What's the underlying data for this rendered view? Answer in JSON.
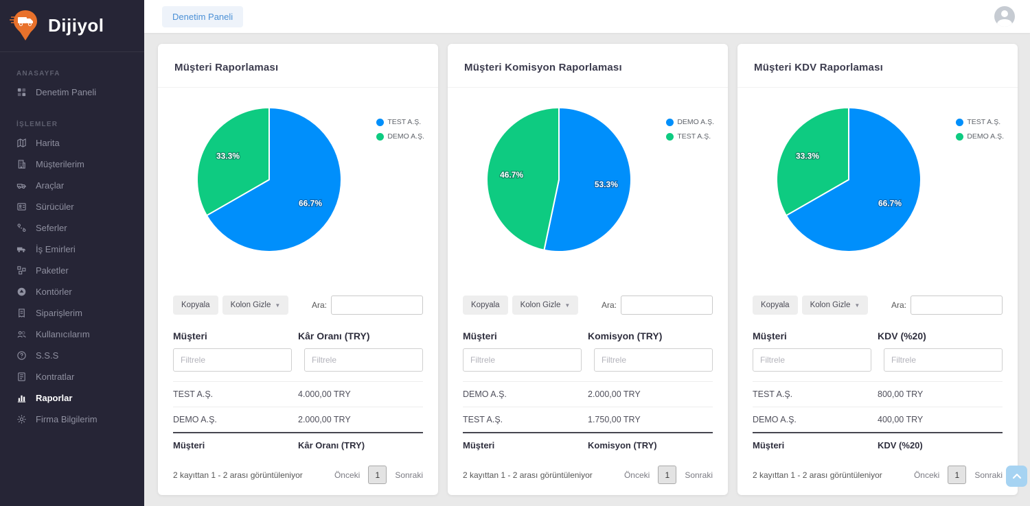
{
  "brand": {
    "name": "Dijiyol"
  },
  "topbar": {
    "tab": "Denetim Paneli"
  },
  "sidebar": {
    "sections": [
      {
        "label": "ANASAYFA",
        "items": [
          {
            "icon": "dashboard-icon",
            "label": "Denetim Paneli"
          }
        ]
      },
      {
        "label": "İŞLEMLER",
        "items": [
          {
            "icon": "map-icon",
            "label": "Harita"
          },
          {
            "icon": "building-icon",
            "label": "Müşterilerim"
          },
          {
            "icon": "vehicle-icon",
            "label": "Araçlar"
          },
          {
            "icon": "id-card-icon",
            "label": "Sürücüler"
          },
          {
            "icon": "route-icon",
            "label": "Seferler"
          },
          {
            "icon": "truck-icon",
            "label": "İş Emirleri"
          },
          {
            "icon": "packages-icon",
            "label": "Paketler"
          },
          {
            "icon": "credits-icon",
            "label": "Kontörler"
          },
          {
            "icon": "orders-icon",
            "label": "Siparişlerim"
          },
          {
            "icon": "users-icon",
            "label": "Kullanıcılarım"
          },
          {
            "icon": "question-icon",
            "label": "S.S.S"
          },
          {
            "icon": "contract-icon",
            "label": "Kontratlar"
          },
          {
            "icon": "reports-icon",
            "label": "Raporlar"
          },
          {
            "icon": "gear-icon",
            "label": "Firma Bilgilerim"
          }
        ]
      }
    ]
  },
  "cards": [
    {
      "title": "Müşteri Raporlaması",
      "toolbar": {
        "copy": "Kopyala",
        "hide_columns": "Kolon Gizle",
        "search_label": "Ara:"
      },
      "table": {
        "columns": [
          "Müşteri",
          "Kâr Oranı (TRY)"
        ],
        "filter_placeholder": "Filtrele",
        "rows": [
          [
            "TEST A.Ş.",
            "4.000,00 TRY"
          ],
          [
            "DEMO A.Ş.",
            "2.000,00 TRY"
          ]
        ],
        "info": "2 kayıttan 1 - 2 arası görüntüleniyor",
        "pagination": {
          "prev": "Önceki",
          "page": "1",
          "next": "Sonraki"
        }
      }
    },
    {
      "title": "Müşteri Komisyon Raporlaması",
      "toolbar": {
        "copy": "Kopyala",
        "hide_columns": "Kolon Gizle",
        "search_label": "Ara:"
      },
      "table": {
        "columns": [
          "Müşteri",
          "Komisyon (TRY)"
        ],
        "filter_placeholder": "Filtrele",
        "rows": [
          [
            "DEMO A.Ş.",
            "2.000,00 TRY"
          ],
          [
            "TEST A.Ş.",
            "1.750,00 TRY"
          ]
        ],
        "info": "2 kayıttan 1 - 2 arası görüntüleniyor",
        "pagination": {
          "prev": "Önceki",
          "page": "1",
          "next": "Sonraki"
        }
      }
    },
    {
      "title": "Müşteri KDV Raporlaması",
      "toolbar": {
        "copy": "Kopyala",
        "hide_columns": "Kolon Gizle",
        "search_label": "Ara:"
      },
      "table": {
        "columns": [
          "Müşteri",
          "KDV (%20)"
        ],
        "filter_placeholder": "Filtrele",
        "rows": [
          [
            "TEST A.Ş.",
            "800,00 TRY"
          ],
          [
            "DEMO A.Ş.",
            "400,00 TRY"
          ]
        ],
        "info": "2 kayıttan 1 - 2 arası görüntüleniyor",
        "pagination": {
          "prev": "Önceki",
          "page": "1",
          "next": "Sonraki"
        }
      }
    }
  ],
  "chart_data": [
    {
      "type": "pie",
      "title": "Müşteri Raporlaması",
      "labels": [
        "TEST A.Ş.",
        "DEMO A.Ş."
      ],
      "values": [
        66.7,
        33.3
      ],
      "colors": [
        "#008ffb",
        "#0ecb81"
      ],
      "legend_position": "right"
    },
    {
      "type": "pie",
      "title": "Müşteri Komisyon Raporlaması",
      "labels": [
        "DEMO A.Ş.",
        "TEST A.Ş."
      ],
      "values": [
        53.3,
        46.7
      ],
      "colors": [
        "#008ffb",
        "#0ecb81"
      ],
      "legend_position": "right"
    },
    {
      "type": "pie",
      "title": "Müşteri KDV Raporlaması",
      "labels": [
        "TEST A.Ş.",
        "DEMO A.Ş."
      ],
      "values": [
        66.7,
        33.3
      ],
      "colors": [
        "#008ffb",
        "#0ecb81"
      ],
      "legend_position": "right"
    }
  ],
  "colors": {
    "accent_blue": "#008ffb",
    "accent_green": "#0ecb81",
    "brand_orange": "#e8712b",
    "link_blue": "#4b90d6"
  }
}
